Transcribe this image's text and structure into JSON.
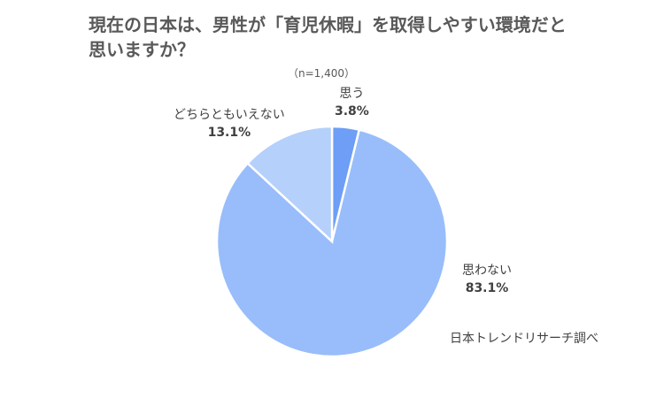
{
  "title_line1": "現在の日本は、男性が「育児休暇」を取得しやすい環境だと",
  "title_line2": "思いますか？",
  "subtitle": "（n=1,400）",
  "source": "日本トレンドリサーチ調べ",
  "chart_data": {
    "type": "pie",
    "title": "現在の日本は、男性が「育児休暇」を取得しやすい環境だと思いますか？",
    "slices": [
      {
        "label": "思う",
        "value": 3.8,
        "display": "3.8%",
        "color": "#6e9ef5"
      },
      {
        "label": "思わない",
        "value": 83.1,
        "display": "83.1%",
        "color": "#98bdfa"
      },
      {
        "label": "どちらともいえない",
        "value": 13.1,
        "display": "13.1%",
        "color": "#b5d0fb"
      }
    ],
    "start_angle": "12 o'clock",
    "direction": "clockwise",
    "legend": "none (labels beside slices)"
  }
}
